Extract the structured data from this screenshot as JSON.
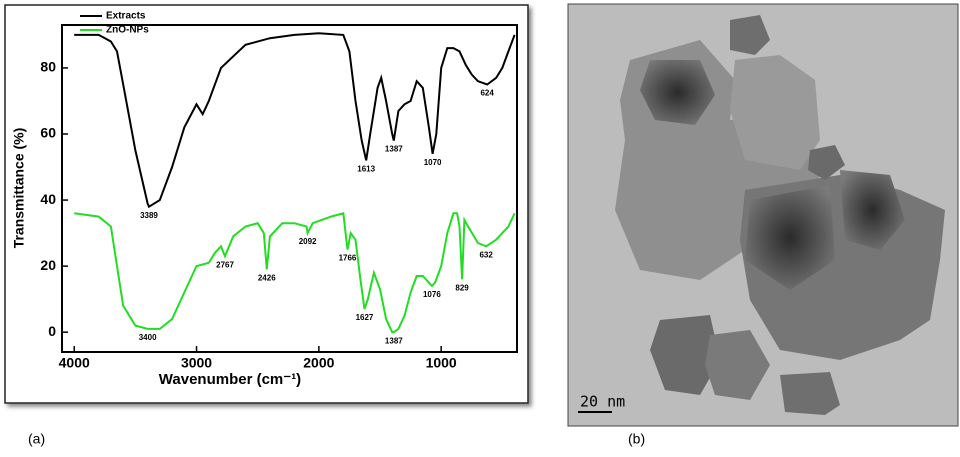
{
  "chart_data": {
    "type": "line",
    "xlabel": "Wavenumber (cm⁻¹)",
    "ylabel": "Transmittance (%)",
    "xlim": [
      4100,
      380
    ],
    "ylim": [
      -6,
      93
    ],
    "xticks": [
      4000,
      3000,
      2000,
      1000
    ],
    "yticks": [
      0,
      20,
      40,
      60,
      80
    ],
    "legend": "upper left",
    "series": [
      {
        "name": "Extracts",
        "color": "#000000",
        "x": [
          4000,
          3800,
          3700,
          3650,
          3600,
          3500,
          3400,
          3389,
          3300,
          3200,
          3100,
          3000,
          2950,
          2900,
          2800,
          2600,
          2400,
          2200,
          2000,
          1800,
          1750,
          1700,
          1650,
          1613,
          1580,
          1520,
          1490,
          1450,
          1400,
          1387,
          1350,
          1300,
          1250,
          1200,
          1150,
          1100,
          1070,
          1040,
          1000,
          950,
          900,
          850,
          800,
          750,
          700,
          624,
          550,
          500,
          450,
          400
        ],
        "values": [
          90,
          90,
          88,
          85,
          75,
          55,
          39,
          38,
          40,
          50,
          62,
          69,
          66,
          70,
          80,
          87,
          89,
          90,
          90.5,
          90,
          85,
          70,
          58,
          52,
          60,
          74,
          77,
          70,
          60,
          58,
          67,
          69,
          70,
          76,
          74,
          62,
          54,
          60,
          80,
          86,
          86,
          85,
          81,
          78,
          76,
          75,
          77,
          80,
          85,
          90
        ],
        "peaks": [
          {
            "x": 3389,
            "y": 38
          },
          {
            "x": 1613,
            "y": 52
          },
          {
            "x": 1387,
            "y": 58
          },
          {
            "x": 1070,
            "y": 54
          },
          {
            "x": 624,
            "y": 75
          }
        ]
      },
      {
        "name": "ZnO-NPs",
        "color": "#22dd22",
        "x": [
          4000,
          3800,
          3700,
          3650,
          3600,
          3500,
          3400,
          3300,
          3200,
          3100,
          3000,
          2900,
          2850,
          2800,
          2767,
          2700,
          2600,
          2500,
          2450,
          2426,
          2400,
          2300,
          2200,
          2100,
          2092,
          2050,
          1900,
          1800,
          1766,
          1740,
          1700,
          1660,
          1627,
          1600,
          1550,
          1500,
          1450,
          1400,
          1387,
          1350,
          1300,
          1250,
          1200,
          1150,
          1076,
          1050,
          1000,
          950,
          900,
          870,
          850,
          829,
          810,
          780,
          700,
          632,
          550,
          500,
          450,
          400
        ],
        "values": [
          36,
          35,
          32,
          20,
          8,
          2,
          1,
          1,
          4,
          12,
          20,
          21,
          24,
          26,
          23,
          29,
          32,
          33,
          30,
          19,
          29,
          33,
          33,
          32,
          30,
          33,
          35,
          36,
          25,
          30,
          28,
          16,
          7,
          10,
          18,
          13,
          4,
          0,
          0,
          1,
          5,
          12,
          17,
          17,
          14,
          15,
          20,
          30,
          36,
          36,
          32,
          16,
          34,
          32,
          27,
          26,
          28,
          30,
          32,
          36
        ],
        "peaks": [
          {
            "x": 3400,
            "y": 1
          },
          {
            "x": 2767,
            "y": 23
          },
          {
            "x": 2426,
            "y": 19
          },
          {
            "x": 2092,
            "y": 30
          },
          {
            "x": 1766,
            "y": 25
          },
          {
            "x": 1627,
            "y": 7
          },
          {
            "x": 1387,
            "y": 0
          },
          {
            "x": 1076,
            "y": 14
          },
          {
            "x": 829,
            "y": 16
          },
          {
            "x": 632,
            "y": 26
          }
        ]
      }
    ]
  },
  "figure": {
    "panel_labels": [
      "(a)",
      "(b)"
    ],
    "scale_bar": "20 nm"
  }
}
